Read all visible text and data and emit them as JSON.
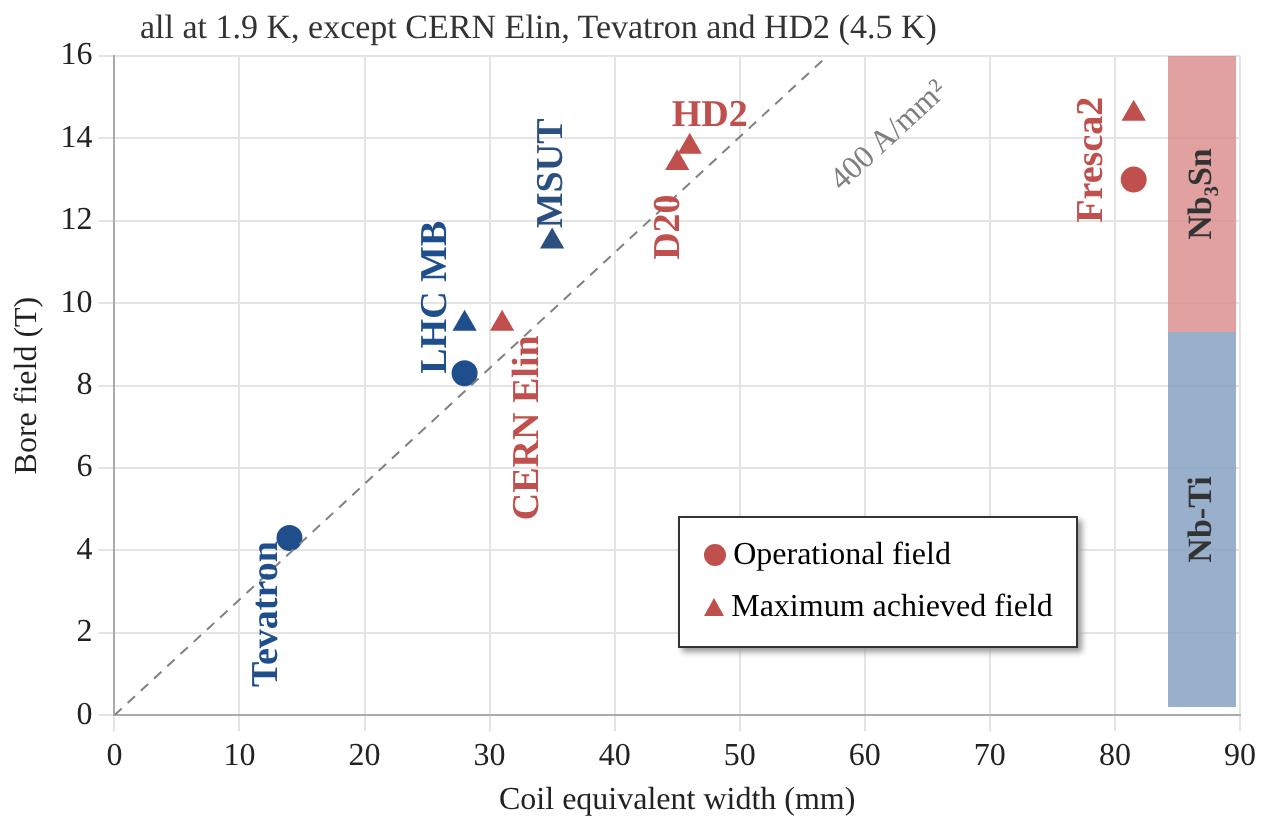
{
  "chart_data": {
    "type": "scatter",
    "title": "all at 1.9 K, except CERN Elin, Tevatron and HD2 (4.5 K)",
    "xlabel": "Coil equivalent width (mm)",
    "ylabel": "Bore field (T)",
    "series": [
      {
        "name": "Operational field",
        "type": "scatter",
        "marker": "circle",
        "color": "#c0504d",
        "x": [
          14,
          28,
          81.5
        ],
        "values": [
          4.3,
          8.3,
          13
        ],
        "colors": [
          "#1f4e8c",
          "#1f4e8c",
          "#c0504d"
        ]
      },
      {
        "name": "Maximum achieved field",
        "type": "scatter",
        "marker": "triangle",
        "color": "#c0504d",
        "x": [
          28,
          31,
          35,
          45,
          46,
          81.5
        ],
        "values": [
          9.5,
          9.5,
          11.5,
          13.4,
          13.8,
          14.6
        ],
        "colors": [
          "#1f4e8c",
          "#c0504d",
          "#2b4f7e",
          "#c0504d",
          "#c0504d",
          "#c0504d"
        ]
      },
      {
        "type": "line",
        "line_style": "dashed",
        "marker": "none",
        "color": "#808080",
        "x": [
          0,
          57
        ],
        "values": [
          0,
          16
        ]
      }
    ],
    "annotations": [
      {
        "text": "Tevatron",
        "x": 14,
        "y": 4.3
      },
      {
        "text": "LHC MB",
        "x": 28,
        "y": 8.3
      },
      {
        "text": "CERN Elin",
        "x": 31,
        "y": 9.5
      },
      {
        "text": "MSUT",
        "x": 35,
        "y": 11.5
      },
      {
        "text": "D20",
        "x": 45,
        "y": 13.4
      },
      {
        "text": "HD2",
        "x": 46,
        "y": 13.8
      },
      {
        "text": "Fresca2",
        "x": 81.5,
        "y": 14.6
      },
      {
        "text": "400 A/mm²",
        "x": 57,
        "y": 16
      }
    ],
    "bands": [
      {
        "axis": "y",
        "from": 9.3,
        "to": 16,
        "label": "Nb₃Sn",
        "color": "#d98a8a"
      },
      {
        "axis": "y",
        "from": 0.2,
        "to": 9.3,
        "label": "Nb-Ti",
        "color": "#7f9cc0"
      }
    ],
    "xlim": [
      0,
      90
    ],
    "xticks": [
      0,
      10,
      20,
      30,
      40,
      50,
      60,
      70,
      80,
      90
    ],
    "ylim": [
      0,
      16
    ],
    "yticks": [
      0,
      2,
      4,
      6,
      8,
      10,
      12,
      14,
      16
    ],
    "grid": true,
    "legend": "bottom right"
  }
}
